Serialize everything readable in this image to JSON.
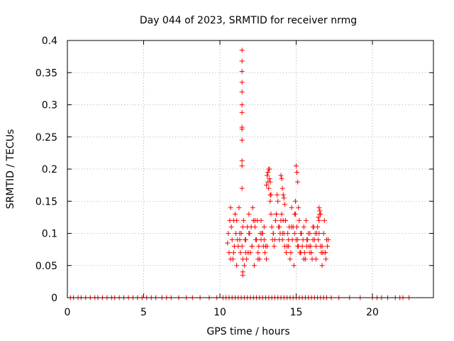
{
  "chart_data": {
    "type": "scatter",
    "title": "Day 044 of 2023, SRMTID for receiver nrmg",
    "xlabel": "GPS time / hours",
    "ylabel": "SRMTID / TECUs",
    "xlim": [
      0,
      24
    ],
    "ylim": [
      0,
      0.4
    ],
    "xticks": [
      0,
      5,
      10,
      15,
      20
    ],
    "xtick_labels": [
      "0",
      "5",
      "10",
      "15",
      "20"
    ],
    "yticks": [
      0,
      0.05,
      0.1,
      0.15,
      0.2,
      0.25,
      0.3,
      0.35,
      0.4
    ],
    "ytick_labels": [
      "0",
      "0.05",
      "0.1",
      "0.15",
      "0.2",
      "0.25",
      "0.3",
      "0.35",
      "0.4"
    ],
    "grid": true,
    "marker": "+",
    "marker_color": "#ff0000",
    "series": [
      {
        "name": "SRMTID",
        "x": [
          0.2,
          0.4,
          0.7,
          0.9,
          1.2,
          1.5,
          1.8,
          2.0,
          2.3,
          2.6,
          2.9,
          3.1,
          3.4,
          3.7,
          4.0,
          4.3,
          4.6,
          4.9,
          5.2,
          5.5,
          5.8,
          6.2,
          6.5,
          6.8,
          7.3,
          7.8,
          8.2,
          8.7,
          9.3,
          9.8,
          10.2,
          10.4,
          10.6,
          10.8,
          11.0,
          11.2,
          11.4,
          11.6,
          11.8,
          12.0,
          12.2,
          12.4,
          12.6,
          12.8,
          13.0,
          13.2,
          13.4,
          13.6,
          13.8,
          14.0,
          14.2,
          14.4,
          14.6,
          14.8,
          15.0,
          15.2,
          15.4,
          15.6,
          15.8,
          16.0,
          16.2,
          16.4,
          16.6,
          16.8,
          17.0,
          17.3,
          17.8,
          18.5,
          19.2,
          20.0,
          20.3,
          20.6,
          21.0,
          21.5,
          21.8,
          22.0,
          22.4,
          10.5,
          10.7,
          10.9,
          11.1,
          11.3,
          11.5,
          11.7,
          11.9,
          12.1,
          12.3,
          12.5,
          12.7,
          12.9,
          13.1,
          13.3,
          13.5,
          13.7,
          13.9,
          14.1,
          14.3,
          14.5,
          14.7,
          14.9,
          15.1,
          15.3,
          15.5,
          15.7,
          15.9,
          16.1,
          16.3,
          16.5,
          16.7,
          16.9,
          17.1,
          10.55,
          10.75,
          10.95,
          11.15,
          11.35,
          11.55,
          11.75,
          11.95,
          12.15,
          12.35,
          12.55,
          12.75,
          12.95,
          13.15,
          13.35,
          13.55,
          13.75,
          13.95,
          14.15,
          14.35,
          14.55,
          14.75,
          14.95,
          15.15,
          15.35,
          15.55,
          15.75,
          15.95,
          16.15,
          16.35,
          16.55,
          16.75,
          16.95,
          10.6,
          10.8,
          11.0,
          11.2,
          11.4,
          11.6,
          11.8,
          12.0,
          12.2,
          12.4,
          12.6,
          12.8,
          13.0,
          13.2,
          13.4,
          13.6,
          13.8,
          14.0,
          14.2,
          14.4,
          14.6,
          14.8,
          15.0,
          15.2,
          15.4,
          15.6,
          15.8,
          16.0,
          16.2,
          16.4,
          16.6,
          16.8,
          17.0,
          10.65,
          10.85,
          11.05,
          11.25,
          11.45,
          11.65,
          11.85,
          12.05,
          12.25,
          12.45,
          12.65,
          12.85,
          13.05,
          13.25,
          13.45,
          13.65,
          13.85,
          14.05,
          14.25,
          14.45,
          14.65,
          14.85,
          15.05,
          15.25,
          15.45,
          15.65,
          15.85,
          16.05,
          16.25,
          16.45,
          16.65,
          16.85,
          17.05,
          10.7,
          10.9,
          11.1,
          11.3,
          11.5,
          11.7,
          11.9,
          12.1,
          12.3,
          12.5,
          12.7,
          12.9,
          13.1,
          13.3,
          13.5,
          13.7,
          13.9,
          14.1,
          14.3,
          14.5,
          14.7,
          14.9,
          15.1,
          15.3,
          15.5,
          15.7,
          15.9,
          16.1,
          16.3,
          16.5,
          16.7,
          16.9,
          11.45,
          11.45,
          11.45,
          11.45,
          11.45,
          11.45,
          11.45,
          11.45,
          11.45,
          11.45,
          11.45,
          11.45,
          11.45,
          11.5,
          11.5,
          13.1,
          13.2,
          13.3,
          13.15,
          13.25,
          13.05,
          13.35,
          14.0,
          14.05,
          14.1,
          14.15,
          14.2,
          14.25,
          15.0,
          15.05,
          15.1,
          14.95,
          15.15,
          16.5,
          16.55,
          16.6,
          16.45
        ],
        "y": [
          0,
          0,
          0,
          0,
          0,
          0,
          0,
          0,
          0,
          0,
          0,
          0,
          0,
          0,
          0,
          0,
          0,
          0,
          0,
          0,
          0,
          0,
          0,
          0,
          0,
          0,
          0,
          0,
          0,
          0,
          0,
          0,
          0,
          0,
          0,
          0,
          0,
          0,
          0,
          0,
          0,
          0,
          0,
          0,
          0,
          0,
          0,
          0,
          0,
          0,
          0,
          0,
          0,
          0,
          0,
          0,
          0,
          0,
          0,
          0,
          0,
          0,
          0,
          0,
          0,
          0,
          0,
          0,
          0,
          0,
          0,
          0,
          0,
          0,
          0,
          0,
          0,
          0.085,
          0.14,
          0.07,
          0.12,
          0.1,
          0.06,
          0.09,
          0.13,
          0.08,
          0.11,
          0.07,
          0.12,
          0.09,
          0.19,
          0.15,
          0.1,
          0.13,
          0.11,
          0.09,
          0.12,
          0.08,
          0.14,
          0.1,
          0.09,
          0.07,
          0.11,
          0.08,
          0.1,
          0.09,
          0.06,
          0.12,
          0.08,
          0.07,
          0.09,
          0.1,
          0.11,
          0.08,
          0.09,
          0.07,
          0.12,
          0.06,
          0.1,
          0.14,
          0.09,
          0.08,
          0.1,
          0.07,
          0.18,
          0.13,
          0.08,
          0.16,
          0.1,
          0.12,
          0.07,
          0.11,
          0.09,
          0.13,
          0.08,
          0.1,
          0.07,
          0.09,
          0.08,
          0.11,
          0.1,
          0.13,
          0.07,
          0.06,
          0.07,
          0.09,
          0.13,
          0.08,
          0.1,
          0.05,
          0.11,
          0.07,
          0.12,
          0.09,
          0.06,
          0.1,
          0.08,
          0.17,
          0.11,
          0.09,
          0.15,
          0.12,
          0.1,
          0.08,
          0.06,
          0.11,
          0.09,
          0.12,
          0.08,
          0.06,
          0.1,
          0.07,
          0.09,
          0.11,
          0.08,
          0.1,
          0.09,
          0.12,
          0.06,
          0.1,
          0.14,
          0.08,
          0.09,
          0.07,
          0.11,
          0.05,
          0.12,
          0.1,
          0.08,
          0.06,
          0.2,
          0.09,
          0.12,
          0.11,
          0.13,
          0.08,
          0.1,
          0.07,
          0.05,
          0.11,
          0.07,
          0.09,
          0.12,
          0.08,
          0.06,
          0.1,
          0.09,
          0.07,
          0.12,
          0.08,
          0.06,
          0.12,
          0.05,
          0.09,
          0.11,
          0.07,
          0.1,
          0.08,
          0.12,
          0.06,
          0.09,
          0.11,
          0.08,
          0.16,
          0.1,
          0.13,
          0.09,
          0.1,
          0.12,
          0.09,
          0.11,
          0.13,
          0.08,
          0.1,
          0.06,
          0.09,
          0.07,
          0.11,
          0.08,
          0.1,
          0.05,
          0.07,
          0.385,
          0.368,
          0.352,
          0.335,
          0.32,
          0.3,
          0.288,
          0.265,
          0.262,
          0.245,
          0.213,
          0.205,
          0.17,
          0.035,
          0.04,
          0.19,
          0.2,
          0.18,
          0.195,
          0.185,
          0.175,
          0.16,
          0.19,
          0.185,
          0.17,
          0.16,
          0.155,
          0.145,
          0.205,
          0.195,
          0.18,
          0.15,
          0.14,
          0.14,
          0.135,
          0.13,
          0.125
        ]
      }
    ]
  }
}
